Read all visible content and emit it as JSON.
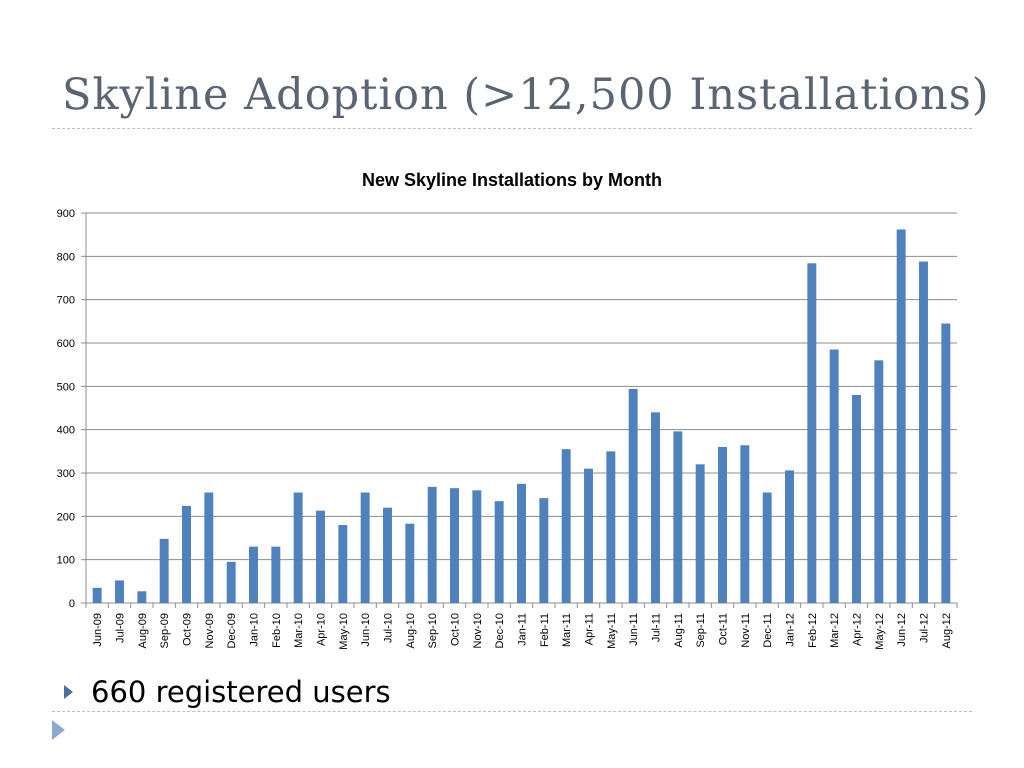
{
  "slide": {
    "title": "Skyline Adoption (>12,500 Installations)",
    "bullet": "660 registered users"
  },
  "colors": {
    "bar": "#4f81bd",
    "title": "#5a6472",
    "accent": "#4a6fa5"
  },
  "chart_data": {
    "type": "bar",
    "title": "New Skyline Installations by Month",
    "xlabel": "",
    "ylabel": "",
    "ylim": [
      0,
      900
    ],
    "yticks": [
      0,
      100,
      200,
      300,
      400,
      500,
      600,
      700,
      800,
      900
    ],
    "grid": true,
    "categories": [
      "Jun-09",
      "Jul-09",
      "Aug-09",
      "Sep-09",
      "Oct-09",
      "Nov-09",
      "Dec-09",
      "Jan-10",
      "Feb-10",
      "Mar-10",
      "Apr-10",
      "May-10",
      "Jun-10",
      "Jul-10",
      "Aug-10",
      "Sep-10",
      "Oct-10",
      "Nov-10",
      "Dec-10",
      "Jan-11",
      "Feb-11",
      "Mar-11",
      "Apr-11",
      "May-11",
      "Jun-11",
      "Jul-11",
      "Aug-11",
      "Sep-11",
      "Oct-11",
      "Nov-11",
      "Dec-11",
      "Jan-12",
      "Feb-12",
      "Mar-12",
      "Apr-12",
      "May-12",
      "Jun-12",
      "Jul-12",
      "Aug-12"
    ],
    "values": [
      35,
      52,
      27,
      148,
      224,
      255,
      95,
      130,
      130,
      255,
      213,
      180,
      255,
      220,
      183,
      268,
      265,
      260,
      235,
      275,
      242,
      355,
      310,
      350,
      494,
      440,
      396,
      320,
      360,
      364,
      255,
      306,
      784,
      585,
      480,
      560,
      862,
      788,
      645
    ]
  }
}
